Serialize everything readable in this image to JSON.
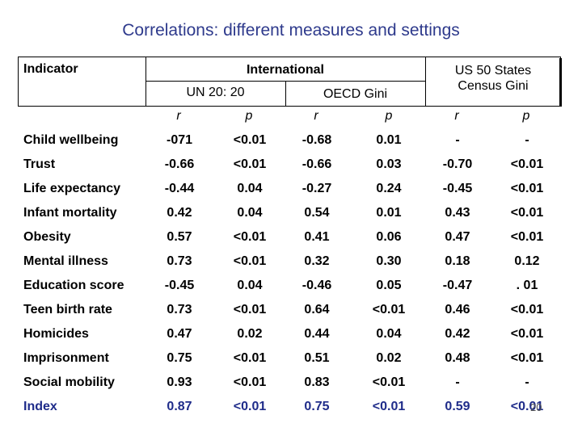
{
  "title": "Correlations: different measures and settings",
  "header": {
    "indicator": "Indicator",
    "international": "International",
    "un": "UN 20: 20",
    "oecd": "OECD Gini",
    "us_line1": "US 50 States",
    "us_line2": "Census Gini",
    "cols": [
      "r",
      "p",
      "r",
      "p",
      "r",
      "p"
    ]
  },
  "rows": [
    {
      "label": "Child wellbeing",
      "values": [
        "-071",
        "<0.01",
        "-0.68",
        "0.01",
        "-",
        "-"
      ]
    },
    {
      "label": "Trust",
      "values": [
        "-0.66",
        "<0.01",
        "-0.66",
        "0.03",
        "-0.70",
        "<0.01"
      ]
    },
    {
      "label": "Life expectancy",
      "values": [
        "-0.44",
        "0.04",
        "-0.27",
        "0.24",
        "-0.45",
        "<0.01"
      ]
    },
    {
      "label": "Infant mortality",
      "values": [
        "0.42",
        "0.04",
        "0.54",
        "0.01",
        "0.43",
        "<0.01"
      ]
    },
    {
      "label": "Obesity",
      "values": [
        "0.57",
        "<0.01",
        "0.41",
        "0.06",
        "0.47",
        "<0.01"
      ]
    },
    {
      "label": "Mental illness",
      "values": [
        "0.73",
        "<0.01",
        "0.32",
        "0.30",
        "0.18",
        "0.12"
      ]
    },
    {
      "label": "Education score",
      "values": [
        "-0.45",
        "0.04",
        "-0.46",
        "0.05",
        "-0.47",
        ". 01"
      ]
    },
    {
      "label": "Teen birth rate",
      "values": [
        "0.73",
        "<0.01",
        "0.64",
        "<0.01",
        "0.46",
        "<0.01"
      ]
    },
    {
      "label": "Homicides",
      "values": [
        "0.47",
        "0.02",
        "0.44",
        "0.04",
        "0.42",
        "<0.01"
      ]
    },
    {
      "label": "Imprisonment",
      "values": [
        "0.75",
        "<0.01",
        "0.51",
        "0.02",
        "0.48",
        "<0.01"
      ]
    },
    {
      "label": "Social mobility",
      "values": [
        "0.93",
        "<0.01",
        "0.83",
        "<0.01",
        "-",
        "-"
      ]
    },
    {
      "label": "Index",
      "values": [
        "0.87",
        "<0.01",
        "0.75",
        "<0.01",
        "0.59",
        "<0.01"
      ]
    }
  ],
  "slide_number": "20"
}
